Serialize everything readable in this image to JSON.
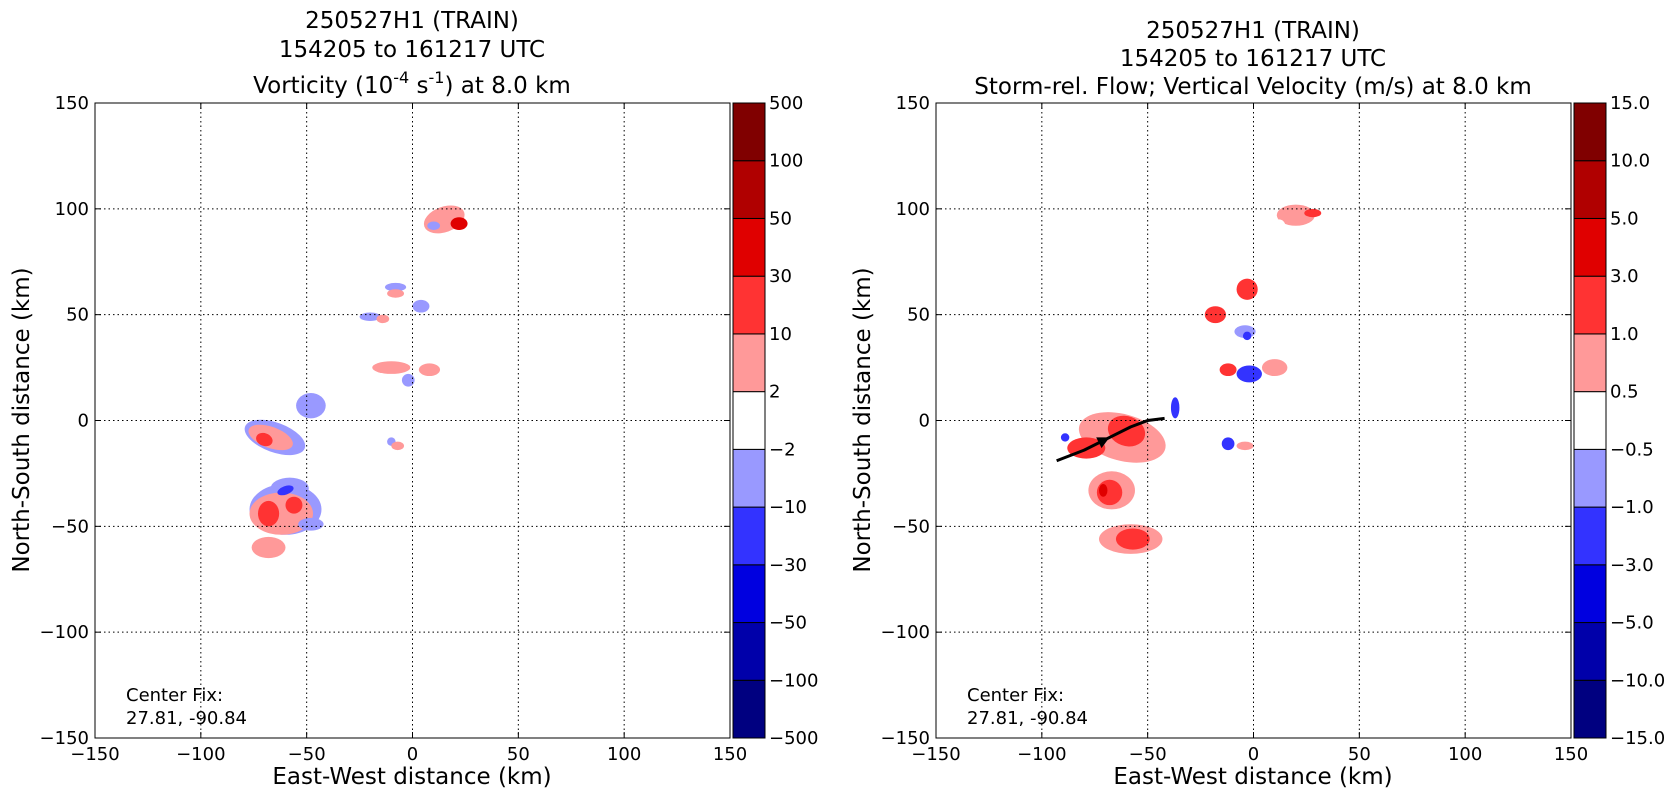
{
  "chart_data": [
    {
      "type": "heatmap",
      "title_lines": [
        "250527H1 (TRAIN)",
        "154205 to 161217 UTC"
      ],
      "title_line3": {
        "before": "Vorticity (10",
        "sup1": "-4",
        "mid": " s",
        "sup2": "-1",
        "after": ") at 8.0 km"
      },
      "xlabel": "East-West distance (km)",
      "ylabel": "North-South distance (km)",
      "xlim": [
        -150,
        150
      ],
      "ylim": [
        -150,
        150
      ],
      "xticks": [
        "−150",
        "−100",
        "−50",
        "0",
        "50",
        "100",
        "150"
      ],
      "yticks": [
        "−150",
        "−100",
        "−50",
        "0",
        "50",
        "100",
        "150"
      ],
      "grid": true,
      "annotation": [
        "Center Fix:",
        "27.81, -90.84"
      ],
      "colorbar": {
        "ticks": [
          "−500",
          "−100",
          "−50",
          "−30",
          "−10",
          "−2",
          "2",
          "10",
          "30",
          "50",
          "100",
          "500"
        ],
        "colors": [
          "#000080",
          "#0000aa",
          "#0000e0",
          "#3333ff",
          "#9999ff",
          "#ffffff",
          "#ff9999",
          "#ff3333",
          "#e00000",
          "#b00000",
          "#800000"
        ]
      },
      "blobs": [
        {
          "x": 15,
          "y": 95,
          "rx": 10,
          "ry": 6,
          "level": 1,
          "angle": 20
        },
        {
          "x": 22,
          "y": 93,
          "rx": 4,
          "ry": 3,
          "level": 3,
          "angle": 0
        },
        {
          "x": 10,
          "y": 92,
          "rx": 3,
          "ry": 2,
          "level": -1,
          "angle": 0
        },
        {
          "x": -8,
          "y": 63,
          "rx": 5,
          "ry": 2,
          "level": -1,
          "angle": 0
        },
        {
          "x": -8,
          "y": 60,
          "rx": 4,
          "ry": 2,
          "level": 1,
          "angle": 0
        },
        {
          "x": 4,
          "y": 54,
          "rx": 4,
          "ry": 3,
          "level": -1,
          "angle": 0
        },
        {
          "x": -20,
          "y": 49,
          "rx": 5,
          "ry": 2,
          "level": -1,
          "angle": 0
        },
        {
          "x": -14,
          "y": 48,
          "rx": 3,
          "ry": 2,
          "level": 1,
          "angle": 0
        },
        {
          "x": -10,
          "y": 25,
          "rx": 9,
          "ry": 3,
          "level": 1,
          "angle": 0
        },
        {
          "x": -2,
          "y": 19,
          "rx": 3,
          "ry": 3,
          "level": -1,
          "angle": 0
        },
        {
          "x": 8,
          "y": 24,
          "rx": 5,
          "ry": 3,
          "level": 1,
          "angle": 0
        },
        {
          "x": -48,
          "y": 7,
          "rx": 7,
          "ry": 6,
          "level": -1,
          "angle": 0
        },
        {
          "x": -65,
          "y": -8,
          "rx": 15,
          "ry": 7,
          "level": -1,
          "angle": -20
        },
        {
          "x": -67,
          "y": -8,
          "rx": 11,
          "ry": 5,
          "level": 1,
          "angle": -20
        },
        {
          "x": -70,
          "y": -9,
          "rx": 4,
          "ry": 3,
          "level": 2,
          "angle": -20
        },
        {
          "x": -58,
          "y": -32,
          "rx": 9,
          "ry": 5,
          "level": -1,
          "angle": 0
        },
        {
          "x": -60,
          "y": -42,
          "rx": 17,
          "ry": 12,
          "level": -1,
          "angle": 0
        },
        {
          "x": -62,
          "y": -44,
          "rx": 15,
          "ry": 10,
          "level": 1,
          "angle": 0
        },
        {
          "x": -68,
          "y": -44,
          "rx": 5,
          "ry": 6,
          "level": 2,
          "angle": 0
        },
        {
          "x": -56,
          "y": -40,
          "rx": 4,
          "ry": 4,
          "level": 2,
          "angle": 0
        },
        {
          "x": -60,
          "y": -33,
          "rx": 4,
          "ry": 2,
          "level": -2,
          "angle": 20
        },
        {
          "x": -68,
          "y": -60,
          "rx": 8,
          "ry": 5,
          "level": 1,
          "angle": 0
        },
        {
          "x": -48,
          "y": -49,
          "rx": 6,
          "ry": 3,
          "level": -1,
          "angle": 0
        },
        {
          "x": -10,
          "y": -10,
          "rx": 2,
          "ry": 2,
          "level": -1,
          "angle": 0
        },
        {
          "x": -7,
          "y": -12,
          "rx": 3,
          "ry": 2,
          "level": 1,
          "angle": 0
        }
      ]
    },
    {
      "type": "heatmap",
      "title_lines": [
        "250527H1 (TRAIN)",
        "154205 to 161217 UTC",
        "Storm-rel. Flow; Vertical Velocity (m/s) at 8.0 km"
      ],
      "xlabel": "East-West distance (km)",
      "ylabel": "North-South distance (km)",
      "xlim": [
        -150,
        150
      ],
      "ylim": [
        -150,
        150
      ],
      "xticks": [
        "−150",
        "−100",
        "−50",
        "0",
        "50",
        "100",
        "150"
      ],
      "yticks": [
        "−150",
        "−100",
        "−50",
        "0",
        "50",
        "100",
        "150"
      ],
      "grid": true,
      "annotation": [
        "Center Fix:",
        "27.81, -90.84"
      ],
      "colorbar": {
        "ticks": [
          "−15.0",
          "−10.0",
          "−5.0",
          "−3.0",
          "−1.0",
          "−0.5",
          "0.5",
          "1.0",
          "3.0",
          "5.0",
          "10.0",
          "15.0"
        ],
        "colors": [
          "#000080",
          "#0000aa",
          "#0000e0",
          "#3333ff",
          "#9999ff",
          "#ffffff",
          "#ff9999",
          "#ff3333",
          "#e00000",
          "#b00000",
          "#800000"
        ]
      },
      "streamline": [
        [
          -93,
          -19
        ],
        [
          -80,
          -14
        ],
        [
          -68,
          -8
        ],
        [
          -58,
          -3
        ],
        [
          -50,
          0
        ],
        [
          -42,
          1
        ]
      ],
      "blobs": [
        {
          "x": 20,
          "y": 97,
          "rx": 9,
          "ry": 5,
          "level": 1,
          "angle": 0
        },
        {
          "x": 28,
          "y": 98,
          "rx": 4,
          "ry": 2,
          "level": 2,
          "angle": 0
        },
        {
          "x": 12,
          "y": 92,
          "rx": 3,
          "ry": 3,
          "level": 0,
          "angle": 0
        },
        {
          "x": -3,
          "y": 62,
          "rx": 5,
          "ry": 5,
          "level": 2,
          "angle": 0
        },
        {
          "x": -18,
          "y": 50,
          "rx": 5,
          "ry": 4,
          "level": 2,
          "angle": 0
        },
        {
          "x": -4,
          "y": 42,
          "rx": 5,
          "ry": 3,
          "level": -1,
          "angle": 0
        },
        {
          "x": -3,
          "y": 40,
          "rx": 2,
          "ry": 2,
          "level": -2,
          "angle": 0
        },
        {
          "x": -12,
          "y": 24,
          "rx": 4,
          "ry": 3,
          "level": 2,
          "angle": 0
        },
        {
          "x": -2,
          "y": 22,
          "rx": 6,
          "ry": 4,
          "level": -2,
          "angle": 0
        },
        {
          "x": 10,
          "y": 25,
          "rx": 6,
          "ry": 4,
          "level": 1,
          "angle": 0
        },
        {
          "x": -37,
          "y": 6,
          "rx": 2,
          "ry": 5,
          "level": -2,
          "angle": 0
        },
        {
          "x": -62,
          "y": -8,
          "rx": 21,
          "ry": 11,
          "level": 1,
          "angle": -15
        },
        {
          "x": -60,
          "y": -5,
          "rx": 9,
          "ry": 7,
          "level": 2,
          "angle": -20
        },
        {
          "x": -79,
          "y": -13,
          "rx": 9,
          "ry": 5,
          "level": 2,
          "angle": 0
        },
        {
          "x": -89,
          "y": -8,
          "rx": 2,
          "ry": 2,
          "level": -2,
          "angle": 0
        },
        {
          "x": -67,
          "y": -33,
          "rx": 11,
          "ry": 9,
          "level": 1,
          "angle": 0
        },
        {
          "x": -68,
          "y": -34,
          "rx": 6,
          "ry": 6,
          "level": 2,
          "angle": 0
        },
        {
          "x": -71,
          "y": -33,
          "rx": 2,
          "ry": 3,
          "level": 3,
          "angle": 0
        },
        {
          "x": -58,
          "y": -56,
          "rx": 15,
          "ry": 7,
          "level": 1,
          "angle": 0
        },
        {
          "x": -57,
          "y": -56,
          "rx": 8,
          "ry": 5,
          "level": 2,
          "angle": 0
        },
        {
          "x": -12,
          "y": -11,
          "rx": 3,
          "ry": 3,
          "level": -2,
          "angle": 0
        },
        {
          "x": -4,
          "y": -12,
          "rx": 4,
          "ry": 2,
          "level": 1,
          "angle": 0
        }
      ]
    }
  ]
}
